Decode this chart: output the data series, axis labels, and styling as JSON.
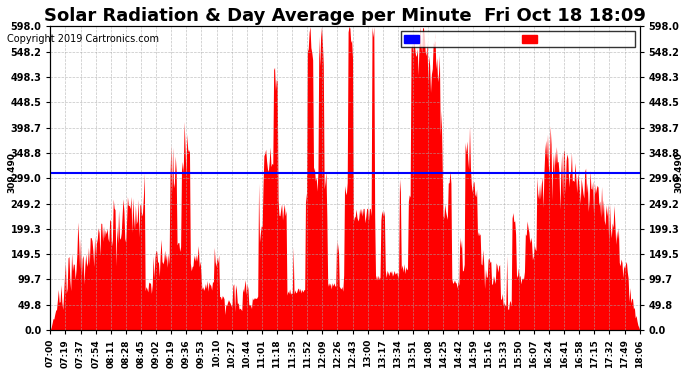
{
  "title": "Solar Radiation & Day Average per Minute  Fri Oct 18 18:09",
  "copyright": "Copyright 2019 Cartronics.com",
  "median_value": 309.49,
  "median_label": "309.490",
  "ymin": 0.0,
  "ymax": 598.0,
  "yticks": [
    0.0,
    49.8,
    99.7,
    149.5,
    199.3,
    249.2,
    299.0,
    348.8,
    398.7,
    448.5,
    498.3,
    548.2,
    598.0
  ],
  "ytick_labels": [
    "0.0",
    "49.8",
    "99.7",
    "149.5",
    "199.3",
    "249.2",
    "299.0",
    "348.8",
    "398.7",
    "448.5",
    "498.3",
    "548.2",
    "598.0"
  ],
  "xtick_labels": [
    "07:00",
    "07:19",
    "07:37",
    "07:54",
    "08:11",
    "08:28",
    "08:45",
    "09:02",
    "09:19",
    "09:36",
    "09:53",
    "10:10",
    "10:27",
    "10:44",
    "11:01",
    "11:18",
    "11:35",
    "11:52",
    "12:09",
    "12:26",
    "12:43",
    "13:00",
    "13:17",
    "13:34",
    "13:51",
    "14:08",
    "14:25",
    "14:42",
    "14:59",
    "15:16",
    "15:33",
    "15:50",
    "16:07",
    "16:24",
    "16:41",
    "16:58",
    "17:15",
    "17:32",
    "17:49",
    "18:06"
  ],
  "fill_color": "#FF0000",
  "median_line_color": "#0000FF",
  "background_color": "#FFFFFF",
  "grid_color": "#AAAAAA",
  "title_fontsize": 13,
  "legend_radiation_color": "#FF0000",
  "legend_median_color": "#0000FF"
}
